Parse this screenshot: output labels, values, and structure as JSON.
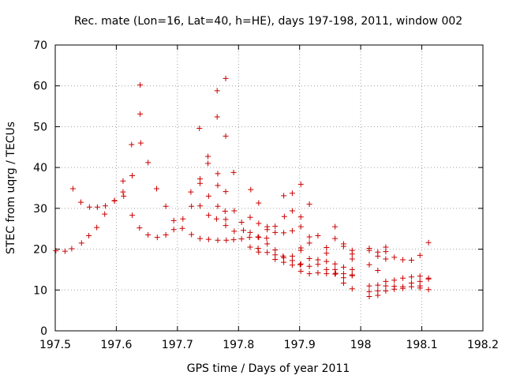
{
  "chart_data": {
    "type": "scatter",
    "title": "Rec. mate (Lon=16, Lat=40, h=HE), days 197-198, 2011, window 002",
    "xlabel": "GPS time / Days of year 2011",
    "ylabel": "STEC from uqrg / TECUs",
    "xlim": [
      197.5,
      198.2
    ],
    "ylim": [
      0,
      70
    ],
    "x_ticks": [
      197.5,
      197.6,
      197.7,
      197.8,
      197.9,
      198.0,
      198.1,
      198.2
    ],
    "x_tick_labels": [
      "197.5",
      "197.6",
      "197.7",
      "197.8",
      "197.9",
      "198",
      "198.1",
      "198.2"
    ],
    "y_ticks": [
      0,
      10,
      20,
      30,
      40,
      50,
      60,
      70
    ],
    "y_tick_labels": [
      "0",
      "10",
      "20",
      "30",
      "40",
      "50",
      "60",
      "70"
    ],
    "grid": true,
    "marker": "plus",
    "color": "#cc0000",
    "series": [
      {
        "points": [
          [
            197.501,
            19.6
          ],
          [
            197.516,
            19.5
          ],
          [
            197.527,
            20.1
          ],
          [
            197.543,
            21.5
          ],
          [
            197.555,
            23.3
          ],
          [
            197.568,
            25.3
          ],
          [
            197.581,
            28.6
          ],
          [
            197.597,
            31.8
          ],
          [
            197.612,
            33.0
          ],
          [
            197.626,
            28.3
          ],
          [
            197.638,
            25.2
          ],
          [
            197.652,
            23.5
          ],
          [
            197.667,
            22.9
          ],
          [
            197.681,
            23.5
          ],
          [
            197.694,
            24.8
          ],
          [
            197.708,
            25.1
          ],
          [
            197.723,
            23.6
          ],
          [
            197.737,
            22.6
          ],
          [
            197.751,
            22.4
          ],
          [
            197.766,
            22.2
          ],
          [
            197.78,
            22.2
          ],
          [
            197.792,
            22.3
          ],
          [
            197.805,
            22.5
          ],
          [
            197.818,
            22.9
          ],
          [
            197.832,
            23.0
          ],
          [
            197.846,
            22.7
          ],
          [
            197.86,
            24.1
          ],
          [
            197.874,
            24.0
          ],
          [
            197.888,
            24.5
          ],
          [
            197.902,
            25.5
          ],
          [
            197.529,
            34.8
          ],
          [
            197.542,
            31.5
          ],
          [
            197.556,
            30.3
          ],
          [
            197.569,
            30.3
          ],
          [
            197.582,
            30.6
          ],
          [
            197.597,
            31.9
          ],
          [
            197.611,
            34.0
          ],
          [
            197.626,
            38.0
          ],
          [
            197.64,
            46.0
          ],
          [
            197.652,
            41.2
          ],
          [
            197.666,
            34.8
          ],
          [
            197.681,
            30.5
          ],
          [
            197.694,
            27.0
          ],
          [
            197.709,
            27.4
          ],
          [
            197.723,
            30.5
          ],
          [
            197.737,
            30.6
          ],
          [
            197.751,
            33.0
          ],
          [
            197.766,
            30.5
          ],
          [
            197.778,
            29.3
          ],
          [
            197.793,
            29.4
          ],
          [
            197.805,
            26.6
          ],
          [
            197.819,
            24.1
          ],
          [
            197.833,
            22.9
          ],
          [
            197.847,
            21.3
          ],
          [
            197.86,
            19.8
          ],
          [
            197.873,
            18.3
          ],
          [
            197.888,
            17.2
          ],
          [
            197.901,
            16.2
          ],
          [
            197.916,
            15.8
          ],
          [
            197.93,
            16.3
          ],
          [
            197.944,
            15.0
          ],
          [
            197.958,
            15.0
          ],
          [
            197.972,
            14.0
          ],
          [
            197.986,
            13.7
          ],
          [
            197.611,
            36.7
          ],
          [
            197.625,
            45.6
          ],
          [
            197.639,
            53.1
          ],
          [
            197.639,
            60.2
          ],
          [
            197.736,
            49.6
          ],
          [
            197.75,
            42.7
          ],
          [
            197.75,
            41.0
          ],
          [
            197.765,
            52.4
          ],
          [
            197.765,
            58.8
          ],
          [
            197.779,
            61.8
          ],
          [
            197.779,
            47.7
          ],
          [
            197.792,
            38.8
          ],
          [
            197.737,
            37.2
          ],
          [
            197.737,
            36.1
          ],
          [
            197.766,
            38.5
          ],
          [
            197.766,
            35.6
          ],
          [
            197.779,
            34.1
          ],
          [
            197.722,
            34.0
          ],
          [
            197.751,
            28.3
          ],
          [
            197.764,
            27.4
          ],
          [
            197.779,
            27.3
          ],
          [
            197.779,
            25.8
          ],
          [
            197.793,
            24.4
          ],
          [
            197.808,
            24.6
          ],
          [
            197.82,
            34.6
          ],
          [
            197.833,
            31.3
          ],
          [
            197.819,
            27.8
          ],
          [
            197.833,
            26.3
          ],
          [
            197.847,
            25.5
          ],
          [
            197.847,
            24.8
          ],
          [
            197.86,
            25.6
          ],
          [
            197.874,
            33.1
          ],
          [
            197.888,
            33.7
          ],
          [
            197.888,
            29.4
          ],
          [
            197.875,
            28.0
          ],
          [
            197.902,
            35.9
          ],
          [
            197.902,
            27.9
          ],
          [
            197.916,
            31.0
          ],
          [
            197.916,
            23.0
          ],
          [
            197.93,
            23.3
          ],
          [
            197.902,
            20.3
          ],
          [
            197.902,
            19.7
          ],
          [
            197.916,
            21.5
          ],
          [
            197.944,
            20.4
          ],
          [
            197.958,
            25.5
          ],
          [
            197.958,
            22.6
          ],
          [
            197.944,
            19.0
          ],
          [
            197.972,
            21.3
          ],
          [
            197.972,
            20.7
          ],
          [
            197.986,
            19.7
          ],
          [
            197.986,
            18.8
          ],
          [
            197.986,
            17.6
          ],
          [
            197.819,
            20.5
          ],
          [
            197.832,
            20.2
          ],
          [
            197.833,
            19.3
          ],
          [
            197.847,
            19.2
          ],
          [
            197.86,
            18.6
          ],
          [
            197.86,
            17.5
          ],
          [
            197.874,
            17.9
          ],
          [
            197.874,
            16.8
          ],
          [
            197.888,
            18.3
          ],
          [
            197.888,
            16.1
          ],
          [
            197.902,
            16.4
          ],
          [
            197.902,
            14.6
          ],
          [
            197.916,
            17.7
          ],
          [
            197.916,
            14.0
          ],
          [
            197.93,
            17.4
          ],
          [
            197.93,
            14.2
          ],
          [
            197.944,
            17.0
          ],
          [
            197.944,
            14.0
          ],
          [
            197.958,
            16.4
          ],
          [
            197.958,
            13.9
          ],
          [
            197.972,
            15.6
          ],
          [
            197.972,
            13.0
          ],
          [
            197.972,
            11.7
          ],
          [
            197.986,
            15.0
          ],
          [
            197.986,
            13.5
          ],
          [
            197.986,
            10.3
          ],
          [
            197.959,
            14.1
          ],
          [
            198.014,
            20.2
          ],
          [
            198.014,
            19.7
          ],
          [
            198.014,
            16.2
          ],
          [
            198.014,
            11.0
          ],
          [
            198.014,
            9.6
          ],
          [
            198.014,
            8.4
          ],
          [
            198.028,
            19.3
          ],
          [
            198.028,
            18.3
          ],
          [
            198.028,
            14.8
          ],
          [
            198.028,
            11.2
          ],
          [
            198.028,
            9.8
          ],
          [
            198.028,
            8.7
          ],
          [
            198.041,
            20.5
          ],
          [
            198.041,
            19.4
          ],
          [
            198.041,
            17.6
          ],
          [
            198.041,
            12.1
          ],
          [
            198.041,
            11.0
          ],
          [
            198.041,
            9.8
          ],
          [
            198.055,
            18.0
          ],
          [
            198.055,
            12.4
          ],
          [
            198.055,
            10.9
          ],
          [
            198.055,
            10.2
          ],
          [
            198.069,
            17.4
          ],
          [
            198.069,
            12.9
          ],
          [
            198.069,
            10.8
          ],
          [
            198.069,
            10.4
          ],
          [
            198.083,
            17.3
          ],
          [
            198.083,
            13.2
          ],
          [
            198.083,
            11.7
          ],
          [
            198.083,
            10.8
          ],
          [
            198.097,
            18.5
          ],
          [
            198.097,
            13.4
          ],
          [
            198.097,
            12.1
          ],
          [
            198.097,
            11.0
          ],
          [
            198.097,
            10.5
          ],
          [
            198.111,
            21.6
          ],
          [
            198.111,
            12.9
          ],
          [
            198.111,
            12.7
          ],
          [
            198.111,
            10.1
          ]
        ]
      }
    ]
  }
}
